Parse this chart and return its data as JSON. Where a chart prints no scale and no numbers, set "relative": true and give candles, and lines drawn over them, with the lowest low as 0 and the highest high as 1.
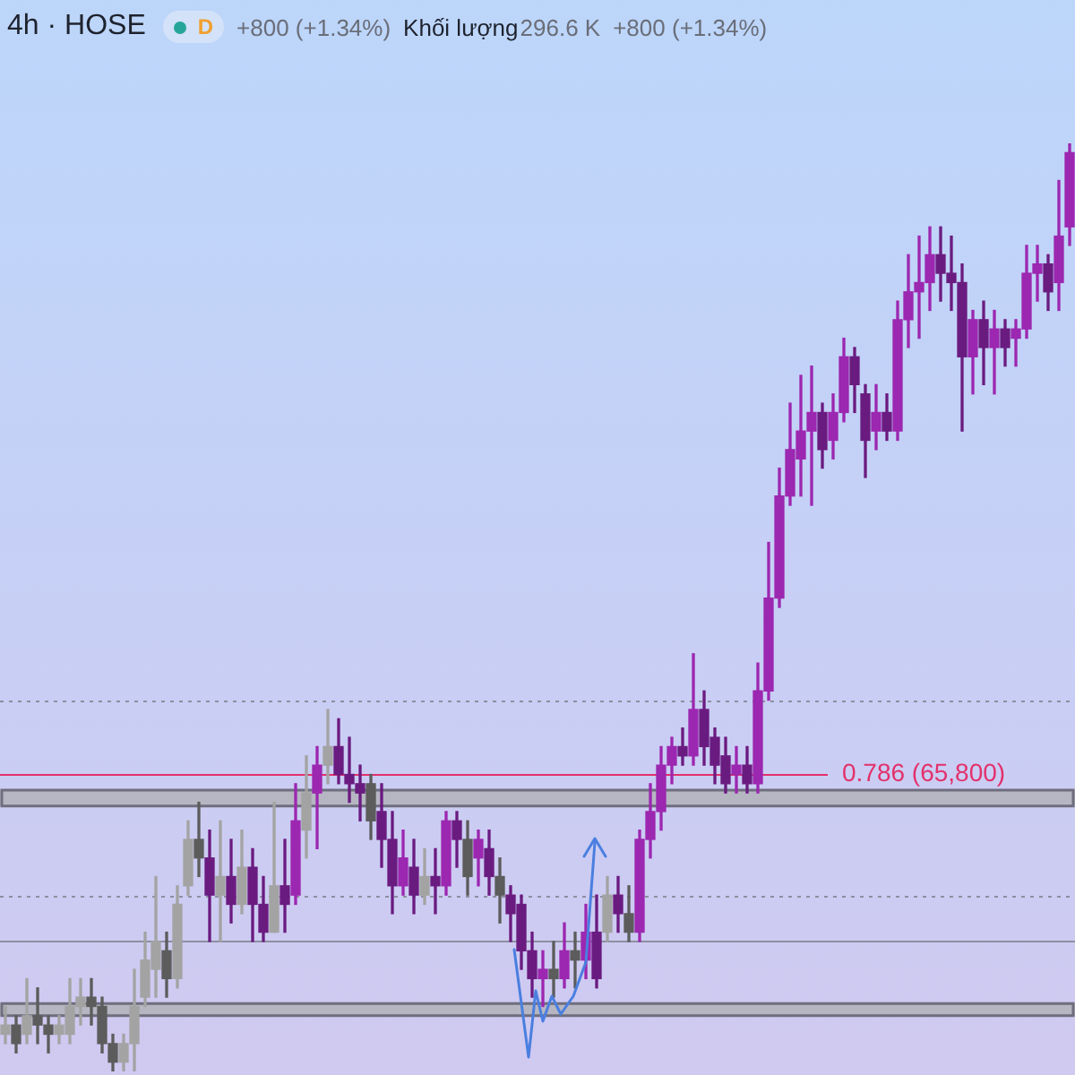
{
  "chart_data": {
    "type": "candlestick",
    "title": "4h · HOSE",
    "annotations": [
      "D",
      "+800 (+1.34%)",
      "Khối lượng",
      "296.6 K",
      "+800 (+1.34%)",
      "0.786 (65,800)"
    ],
    "relative": true,
    "tick_labels": false,
    "categories": [
      null,
      null,
      null,
      null,
      null,
      null,
      null,
      null,
      null,
      null,
      null,
      null,
      null,
      null,
      null,
      null,
      null,
      null,
      null,
      null,
      null,
      null,
      null,
      null,
      null,
      null,
      null,
      null,
      null,
      null,
      null,
      null,
      null,
      null,
      null,
      null,
      null,
      null,
      null,
      null,
      null,
      null,
      null,
      null,
      null,
      null,
      null,
      null,
      null,
      null,
      null,
      null,
      null,
      null,
      null,
      null,
      null,
      null,
      null,
      null,
      null,
      null,
      null,
      null,
      null,
      null,
      null,
      null,
      null,
      null,
      null,
      null,
      null,
      null,
      null,
      null,
      null,
      null,
      null,
      null,
      null,
      null,
      null,
      null,
      null,
      null,
      null,
      null,
      null,
      null,
      null,
      null,
      null,
      null,
      null,
      null,
      null,
      null,
      null,
      null
    ],
    "series": [
      {
        "ohlc": [
          [
            0.04,
            0.07,
            0.03,
            0.05
          ],
          [
            0.05,
            0.06,
            0.02,
            0.03
          ],
          [
            0.04,
            0.1,
            0.03,
            0.06
          ],
          [
            0.06,
            0.09,
            0.03,
            0.05
          ],
          [
            0.05,
            0.06,
            0.02,
            0.04
          ],
          [
            0.04,
            0.06,
            0.03,
            0.05
          ],
          [
            0.04,
            0.1,
            0.03,
            0.07
          ],
          [
            0.07,
            0.1,
            0.05,
            0.08
          ],
          [
            0.08,
            0.1,
            0.05,
            0.07
          ],
          [
            0.07,
            0.08,
            0.02,
            0.03
          ],
          [
            0.03,
            0.04,
            0,
            0.01
          ],
          [
            0.01,
            0.04,
            0,
            0.03
          ],
          [
            0.03,
            0.11,
            0,
            0.07
          ],
          [
            0.08,
            0.15,
            0.07,
            0.12
          ],
          [
            0.11,
            0.21,
            0.08,
            0.14
          ],
          [
            0.13,
            0.15,
            0.08,
            0.1
          ],
          [
            0.1,
            0.2,
            0.09,
            0.18
          ],
          [
            0.2,
            0.27,
            0.19,
            0.25
          ],
          [
            0.25,
            0.29,
            0.21,
            0.23
          ],
          null,
          [
            0.19,
            0.27,
            0.14,
            0.21
          ],
          null,
          [
            0.18,
            0.26,
            0.17,
            0.22
          ],
          null,
          null,
          [
            0.15,
            0.29,
            0.15,
            0.2
          ],
          null,
          null,
          [
            0.26,
            0.34,
            0.23,
            0.3
          ],
          null,
          [
            0.33,
            0.39,
            0.31,
            0.35
          ],
          null,
          null,
          null,
          [
            0.31,
            0.32,
            0.25,
            0.27
          ],
          null,
          null,
          null,
          null,
          [
            0.19,
            0.24,
            0.18,
            0.21
          ],
          null,
          null,
          null,
          [
            0.25,
            0.27,
            0.19,
            0.21
          ],
          null,
          null,
          [
            0.21,
            0.23,
            0.16,
            0.19
          ],
          null,
          null,
          null,
          null,
          [
            0.11,
            0.14,
            0.08,
            0.1
          ],
          null,
          [
            0.13,
            0.15,
            0.09,
            0.12
          ],
          null,
          null,
          [
            0.15,
            0.21,
            0.14,
            0.19
          ],
          null,
          [
            0.17,
            0.2,
            0.14,
            0.15
          ],
          null,
          null,
          null,
          null,
          null,
          null,
          null,
          null,
          null,
          null,
          null,
          null,
          null,
          null,
          null,
          null,
          null,
          null,
          null,
          null,
          null,
          null,
          null,
          null,
          null,
          null,
          null,
          null,
          null,
          null,
          null,
          null,
          null,
          null,
          null,
          null,
          null,
          null,
          null,
          null,
          null
        ],
        "colors": [
          "#a3a3a3",
          "#5c5c5c",
          "#a3a3a3",
          "#5c5c5c",
          "#5c5c5c",
          "#a3a3a3",
          "#a3a3a3",
          "#a3a3a3",
          "#5c5c5c",
          "#5c5c5c",
          "#5c5c5c",
          "#a3a3a3",
          "#a3a3a3",
          "#a3a3a3",
          "#a3a3a3",
          "#5c5c5c",
          "#a3a3a3",
          "#a3a3a3",
          "#5c5c5c",
          null,
          "#a3a3a3",
          null,
          "#a3a3a3",
          null,
          null,
          "#a3a3a3",
          null,
          null,
          "#a3a3a3",
          null,
          "#a3a3a3",
          null,
          null,
          null,
          "#5c5c5c",
          null,
          null,
          null,
          null,
          "#a3a3a3",
          null,
          null,
          null,
          "#5c5c5c",
          null,
          null,
          "#5c5c5c",
          null,
          null,
          null,
          null,
          "#5c5c5c",
          null,
          "#5c5c5c",
          null,
          null,
          "#a3a3a3",
          null,
          "#5c5c5c",
          null,
          null,
          null,
          null,
          null,
          null,
          null,
          null,
          null,
          null,
          null,
          null,
          null,
          null,
          null,
          null,
          null,
          null,
          null,
          null,
          null,
          null,
          null,
          null,
          null,
          null,
          null,
          null,
          null,
          null,
          null,
          null,
          null,
          null,
          null,
          null,
          null,
          null,
          null,
          null,
          null
        ]
      },
      {
        "ohlc": [
          null,
          null,
          null,
          null,
          null,
          null,
          null,
          null,
          null,
          null,
          null,
          null,
          null,
          null,
          null,
          null,
          null,
          null,
          null,
          [
            0.23,
            0.26,
            0.14,
            0.19
          ],
          null,
          [
            0.21,
            0.25,
            0.16,
            0.18
          ],
          null,
          [
            0.22,
            0.24,
            0.14,
            0.18
          ],
          [
            0.18,
            0.21,
            0.14,
            0.15
          ],
          null,
          [
            0.2,
            0.25,
            0.15,
            0.18
          ],
          [
            0.19,
            0.31,
            0.18,
            0.27
          ],
          null,
          [
            0.3,
            0.35,
            0.24,
            0.33
          ],
          null,
          [
            0.35,
            0.38,
            0.31,
            0.32
          ],
          [
            0.32,
            0.36,
            0.29,
            0.31
          ],
          [
            0.31,
            0.33,
            0.27,
            0.3
          ],
          null,
          [
            0.28,
            0.31,
            0.22,
            0.25
          ],
          [
            0.25,
            0.28,
            0.17,
            0.2
          ],
          [
            0.2,
            0.26,
            0.19,
            0.23
          ],
          [
            0.22,
            0.25,
            0.17,
            0.19
          ],
          null,
          [
            0.21,
            0.24,
            0.17,
            0.2
          ],
          [
            0.2,
            0.28,
            0.19,
            0.27
          ],
          [
            0.27,
            0.28,
            0.22,
            0.25
          ],
          null,
          [
            0.23,
            0.26,
            0.2,
            0.25
          ],
          [
            0.24,
            0.26,
            0.19,
            0.21
          ],
          null,
          [
            0.19,
            0.2,
            0.14,
            0.17
          ],
          [
            0.18,
            0.19,
            0.11,
            0.13
          ],
          [
            0.13,
            0.15,
            0.08,
            0.1
          ],
          [
            0.1,
            0.13,
            0.07,
            0.11
          ],
          null,
          [
            0.1,
            0.16,
            0.09,
            0.13
          ],
          null,
          [
            0.12,
            0.18,
            0.1,
            0.15
          ],
          [
            0.15,
            0.19,
            0.09,
            0.1
          ],
          null,
          [
            0.19,
            0.21,
            0.15,
            0.17
          ],
          null,
          [
            0.15,
            0.26,
            0.14,
            0.25
          ],
          [
            0.25,
            0.31,
            0.23,
            0.28
          ],
          [
            0.28,
            0.35,
            0.26,
            0.33
          ],
          [
            0.33,
            0.36,
            0.31,
            0.35
          ],
          [
            0.35,
            0.37,
            0.33,
            0.34
          ],
          [
            0.34,
            0.45,
            0.33,
            0.39
          ],
          [
            0.39,
            0.41,
            0.33,
            0.35
          ],
          [
            0.36,
            0.37,
            0.31,
            0.33
          ],
          [
            0.34,
            0.36,
            0.3,
            0.31
          ],
          [
            0.32,
            0.35,
            0.3,
            0.33
          ],
          [
            0.33,
            0.35,
            0.3,
            0.31
          ],
          [
            0.31,
            0.44,
            0.3,
            0.41
          ],
          [
            0.41,
            0.57,
            0.4,
            0.51
          ],
          [
            0.51,
            0.65,
            0.5,
            0.62
          ],
          [
            0.62,
            0.72,
            0.61,
            0.67
          ],
          [
            0.66,
            0.75,
            0.62,
            0.69
          ],
          [
            0.69,
            0.76,
            0.61,
            0.71
          ],
          [
            0.71,
            0.72,
            0.65,
            0.67
          ],
          [
            0.68,
            0.73,
            0.66,
            0.71
          ],
          [
            0.71,
            0.79,
            0.7,
            0.77
          ],
          [
            0.77,
            0.78,
            0.71,
            0.74
          ],
          [
            0.73,
            0.74,
            0.64,
            0.68
          ],
          [
            0.69,
            0.74,
            0.67,
            0.71
          ],
          [
            0.71,
            0.73,
            0.68,
            0.69
          ],
          [
            0.69,
            0.83,
            0.68,
            0.81
          ],
          [
            0.81,
            0.88,
            0.78,
            0.84
          ],
          [
            0.84,
            0.9,
            0.79,
            0.85
          ],
          [
            0.85,
            0.91,
            0.82,
            0.88
          ],
          [
            0.88,
            0.91,
            0.83,
            0.86
          ],
          [
            0.86,
            0.9,
            0.82,
            0.85
          ],
          [
            0.85,
            0.87,
            0.69,
            0.77
          ],
          [
            0.77,
            0.82,
            0.73,
            0.81
          ],
          [
            0.81,
            0.83,
            0.74,
            0.78
          ],
          [
            0.78,
            0.82,
            0.73,
            0.8
          ],
          [
            0.8,
            0.81,
            0.76,
            0.78
          ],
          [
            0.79,
            0.81,
            0.76,
            0.8
          ],
          [
            0.8,
            0.89,
            0.79,
            0.86
          ],
          [
            0.86,
            0.89,
            0.83,
            0.87
          ],
          [
            0.87,
            0.88,
            0.82,
            0.84
          ],
          [
            0.85,
            0.96,
            0.82,
            0.9
          ],
          [
            0.91,
            1,
            0.89,
            0.99
          ]
        ],
        "colors": [
          null,
          null,
          null,
          null,
          null,
          null,
          null,
          null,
          null,
          null,
          null,
          null,
          null,
          null,
          null,
          null,
          null,
          null,
          null,
          "#6a1b80",
          null,
          "#6a1b80",
          null,
          "#6a1b80",
          "#6a1b80",
          null,
          "#6a1b80",
          "#9c27b0",
          null,
          "#9c27b0",
          null,
          "#6a1b80",
          "#6a1b80",
          "#6a1b80",
          null,
          "#6a1b80",
          "#6a1b80",
          "#9c27b0",
          "#6a1b80",
          null,
          "#6a1b80",
          "#9c27b0",
          "#6a1b80",
          null,
          "#9c27b0",
          "#6a1b80",
          null,
          "#6a1b80",
          "#6a1b80",
          "#6a1b80",
          "#9c27b0",
          null,
          "#9c27b0",
          null,
          "#9c27b0",
          "#6a1b80",
          null,
          "#6a1b80",
          null,
          "#9c27b0",
          "#9c27b0",
          "#9c27b0",
          "#9c27b0",
          "#6a1b80",
          "#9c27b0",
          "#6a1b80",
          "#6a1b80",
          "#6a1b80",
          "#9c27b0",
          "#6a1b80",
          "#9c27b0",
          "#9c27b0",
          "#9c27b0",
          "#9c27b0",
          "#9c27b0",
          "#9c27b0",
          "#6a1b80",
          "#9c27b0",
          "#9c27b0",
          "#6a1b80",
          "#6a1b80",
          "#9c27b0",
          "#6a1b80",
          "#9c27b0",
          "#9c27b0",
          "#9c27b0",
          "#9c27b0",
          "#6a1b80",
          "#6a1b80",
          "#6a1b80",
          "#9c27b0",
          "#6a1b80",
          "#9c27b0",
          "#6a1b80",
          "#9c27b0",
          "#9c27b0",
          "#9c27b0",
          "#6a1b80",
          "#9c27b0",
          "#9c27b0"
        ]
      }
    ],
    "ref_lines": [
      {
        "axis": "y",
        "value": 0.32,
        "color": "#e3306b",
        "line_style": "solid"
      },
      {
        "axis": "y",
        "value": 0.4,
        "color": "#8d8fa0",
        "line_style": "dotted"
      },
      {
        "axis": "y",
        "value": 0.19,
        "color": "#8d8fa0",
        "line_style": "dotted"
      },
      {
        "axis": "y",
        "value": 0.14,
        "color": "#8d8fa0",
        "line_style": "solid"
      }
    ],
    "bands": [
      {
        "axis": "y",
        "from": 0.286,
        "to": 0.303,
        "color": "#b6b6c3"
      },
      {
        "axis": "y",
        "from": 0.06,
        "to": 0.073,
        "color": "#b6b6c3"
      }
    ]
  }
}
